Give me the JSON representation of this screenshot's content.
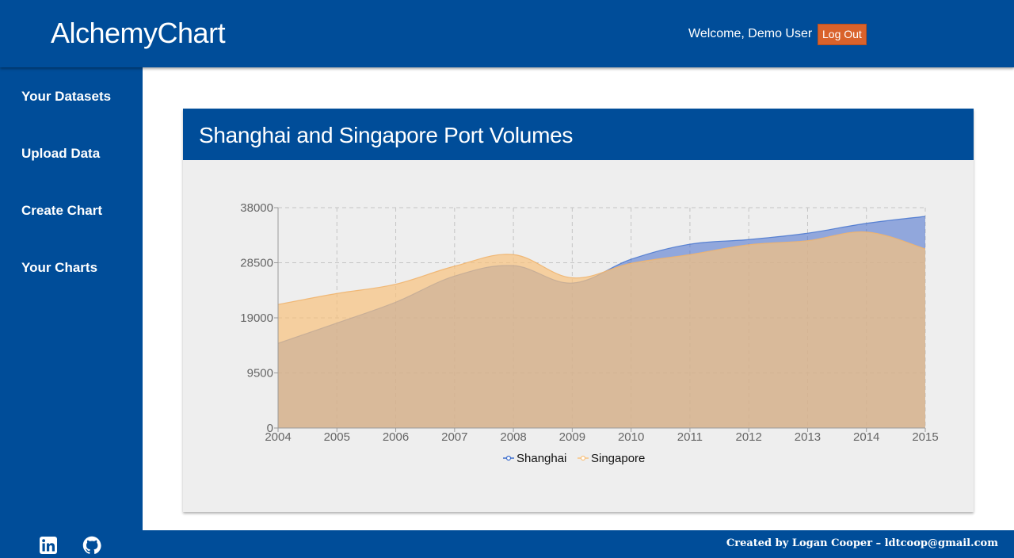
{
  "header": {
    "brand": "AlchemyChart",
    "welcome": "Welcome, Demo User",
    "logout_label": "Log Out"
  },
  "sidebar": {
    "items": [
      {
        "label": "Your Datasets"
      },
      {
        "label": "Upload Data"
      },
      {
        "label": "Create Chart"
      },
      {
        "label": "Your Charts"
      }
    ]
  },
  "card": {
    "title": "Shanghai and Singapore Port Volumes"
  },
  "footer": {
    "credit": "Created by Logan Cooper – ldtcoop@gmail.com",
    "icons": [
      "linkedin-icon",
      "github-icon"
    ]
  },
  "colors": {
    "brand_blue": "#004d99",
    "logout_orange": "#d9622b",
    "shanghai": "#3f6fcd",
    "singapore": "#f8c27e"
  },
  "chart_data": {
    "type": "area",
    "title": "Shanghai and Singapore Port Volumes",
    "xlabel": "",
    "ylabel": "",
    "categories": [
      "2004",
      "2005",
      "2006",
      "2007",
      "2008",
      "2009",
      "2010",
      "2011",
      "2012",
      "2013",
      "2014",
      "2015"
    ],
    "series": [
      {
        "name": "Shanghai",
        "values": [
          14600,
          18100,
          21700,
          26200,
          28000,
          25000,
          29100,
          31700,
          32500,
          33600,
          35300,
          36500
        ]
      },
      {
        "name": "Singapore",
        "values": [
          21300,
          23200,
          24800,
          27900,
          29900,
          25900,
          28400,
          29900,
          31600,
          32300,
          33800,
          30900
        ]
      }
    ],
    "yticks": [
      "0",
      "9500",
      "19000",
      "28500",
      "38000"
    ],
    "ylim": [
      0,
      38000
    ],
    "grid": true,
    "legend": "bottom"
  }
}
